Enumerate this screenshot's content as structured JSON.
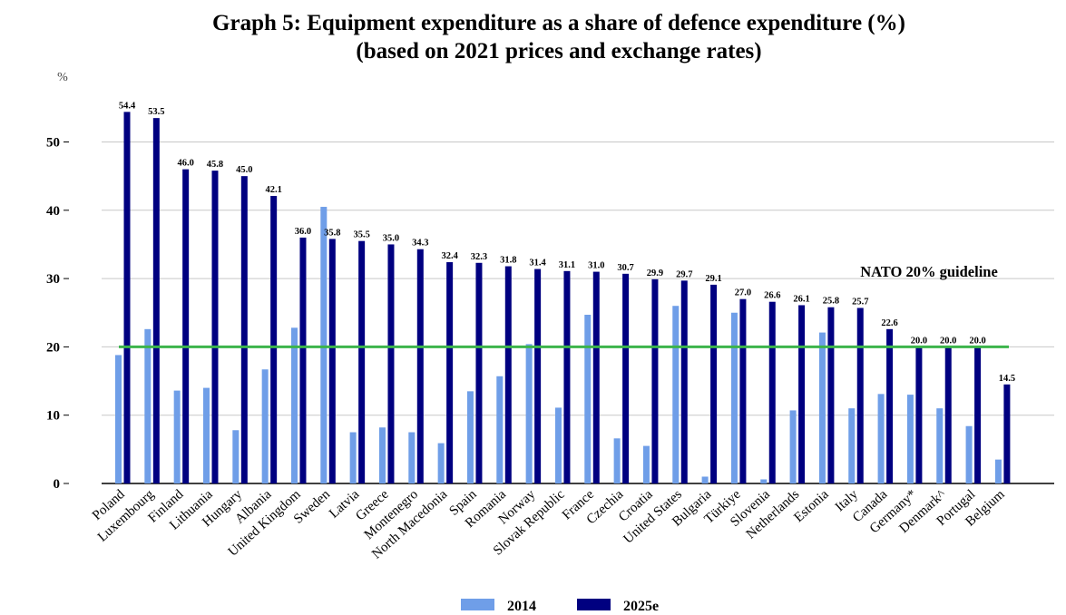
{
  "chart_data": {
    "type": "bar",
    "title": "Graph 5: Equipment expenditure as a share of defence expenditure (%)",
    "subtitle": "(based on 2021 prices and exchange rates)",
    "ylabel": "%",
    "ylim": [
      0,
      57
    ],
    "yticks": [
      0,
      10,
      20,
      30,
      40,
      50
    ],
    "grid": true,
    "legend": "bottom-center",
    "guideline": {
      "value": 20,
      "label": "NATO 20% guideline",
      "color": "#3cb44b"
    },
    "categories": [
      "Poland",
      "Luxembourg",
      "Finland",
      "Lithuania",
      "Hungary",
      "Albania",
      "United Kingdom",
      "Sweden",
      "Latvia",
      "Greece",
      "Montenegro",
      "North Macedonia",
      "Spain",
      "Romania",
      "Norway",
      "Slovak Republic",
      "France",
      "Czechia",
      "Croatia",
      "United States",
      "Bulgaria",
      "Türkiye",
      "Slovenia",
      "Netherlands",
      "Estonia",
      "Italy",
      "Canada",
      "Germany*",
      "Denmark^",
      "Portugal",
      "Belgium"
    ],
    "series": [
      {
        "name": "2014",
        "color": "#6f9ee8",
        "values": [
          18.8,
          22.6,
          13.6,
          14.0,
          7.8,
          16.7,
          22.8,
          40.5,
          7.5,
          8.2,
          7.5,
          5.9,
          13.5,
          15.7,
          20.4,
          11.1,
          24.7,
          6.6,
          5.5,
          26.0,
          1.0,
          25.0,
          0.6,
          10.7,
          22.1,
          11.0,
          13.1,
          13.0,
          11.0,
          8.4,
          3.5
        ],
        "labels_shown": false
      },
      {
        "name": "2025e",
        "color": "#000080",
        "values": [
          54.4,
          53.5,
          46.0,
          45.8,
          45.0,
          42.1,
          36.0,
          35.8,
          35.5,
          35.0,
          34.3,
          32.4,
          32.3,
          31.8,
          31.4,
          31.1,
          31.0,
          30.7,
          29.9,
          29.7,
          29.1,
          27.0,
          26.6,
          26.1,
          25.8,
          25.7,
          22.6,
          20.0,
          20.0,
          20.0,
          14.5
        ],
        "value_labels": [
          "54.4",
          "53.5",
          "46.0",
          "45.8",
          "45.0",
          "42.1",
          "36.0",
          "35.8",
          "35.5",
          "35.0",
          "34.3",
          "32.4",
          "32.3",
          "31.8",
          "31.4",
          "31.1",
          "31.0",
          "30.7",
          "29.9",
          "29.7",
          "29.1",
          "27.0",
          "26.6",
          "26.1",
          "25.8",
          "25.7",
          "22.6",
          "20.0",
          "20.0",
          "20.0",
          "14.5"
        ],
        "labels_shown": true
      }
    ]
  }
}
